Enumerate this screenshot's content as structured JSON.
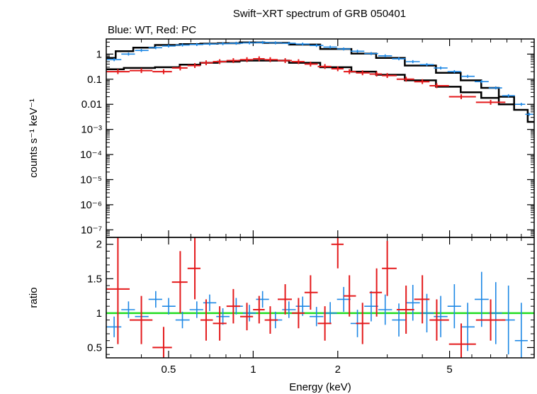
{
  "chart_data": {
    "type": "scatter",
    "title": "Swift−XRT spectrum of GRB 050401",
    "subtitle": "Blue: WT, Red: PC",
    "xlabel": "Energy (keV)",
    "x_scale": "log",
    "xlim": [
      0.3,
      10
    ],
    "x_ticks": [
      {
        "value": 0.5,
        "label": "0.5"
      },
      {
        "value": 1,
        "label": "1"
      },
      {
        "value": 2,
        "label": "2"
      },
      {
        "value": 5,
        "label": "5"
      }
    ],
    "panels": [
      {
        "ylabel": "counts s⁻¹ keV⁻¹",
        "y_scale": "log",
        "ylim": [
          5e-08,
          4
        ],
        "y_ticks": [
          {
            "value": 1,
            "label": "1"
          },
          {
            "value": 0.1,
            "label": "0.1"
          },
          {
            "value": 0.01,
            "label": "0.01"
          },
          {
            "value": 0.001,
            "label": "10⁻³"
          },
          {
            "value": 0.0001,
            "label": "10⁻⁴"
          },
          {
            "value": 1e-05,
            "label": "10⁻⁵"
          },
          {
            "value": 1e-06,
            "label": "10⁻⁶"
          },
          {
            "value": 1e-07,
            "label": "10⁻⁷"
          }
        ],
        "series": [
          {
            "name": "WT",
            "color": "#1e88e5",
            "x": [
              0.32,
              0.36,
              0.4,
              0.45,
              0.5,
              0.56,
              0.63,
              0.7,
              0.78,
              0.87,
              0.97,
              1.08,
              1.2,
              1.34,
              1.5,
              1.68,
              1.88,
              2.1,
              2.35,
              2.63,
              2.95,
              3.3,
              3.7,
              4.15,
              4.65,
              5.2,
              5.8,
              6.5,
              7.3,
              8.1,
              9.0,
              9.6
            ],
            "y": [
              0.6,
              1.0,
              1.4,
              1.8,
              2.1,
              2.3,
              2.4,
              2.5,
              2.6,
              2.7,
              2.8,
              2.9,
              2.8,
              2.7,
              2.5,
              2.2,
              1.9,
              1.6,
              1.3,
              1.05,
              0.85,
              0.65,
              0.5,
              0.38,
              0.28,
              0.2,
              0.13,
              0.08,
              0.045,
              0.022,
              0.01,
              0.004
            ]
          },
          {
            "name": "PC",
            "color": "#e41a1c",
            "x": [
              0.33,
              0.4,
              0.48,
              0.55,
              0.62,
              0.68,
              0.76,
              0.85,
              0.95,
              1.05,
              1.15,
              1.3,
              1.45,
              1.6,
              1.8,
              2.0,
              2.2,
              2.45,
              2.75,
              3.0,
              3.5,
              4.0,
              4.5,
              5.5,
              7.0
            ],
            "y": [
              0.2,
              0.22,
              0.2,
              0.28,
              0.35,
              0.45,
              0.5,
              0.55,
              0.6,
              0.65,
              0.6,
              0.55,
              0.5,
              0.4,
              0.32,
              0.26,
              0.2,
              0.18,
              0.16,
              0.14,
              0.1,
              0.08,
              0.055,
              0.02,
              0.012
            ]
          }
        ],
        "model_lines": [
          {
            "name": "WT model",
            "color": "#000000",
            "x": [
              0.3,
              0.35,
              0.4,
              0.5,
              0.6,
              0.7,
              0.8,
              1.0,
              1.2,
              1.5,
              2.0,
              2.5,
              3.0,
              4.0,
              5.0,
              6.0,
              7.0,
              8.0,
              9.0,
              10.0
            ],
            "y": [
              0.7,
              1.3,
              1.8,
              2.3,
              2.5,
              2.6,
              2.7,
              2.9,
              2.8,
              2.4,
              1.6,
              1.05,
              0.7,
              0.35,
              0.18,
              0.09,
              0.045,
              0.02,
              0.006,
              0.002
            ]
          },
          {
            "name": "PC model",
            "color": "#000000",
            "x": [
              0.3,
              0.4,
              0.5,
              0.6,
              0.7,
              0.8,
              1.0,
              1.2,
              1.5,
              2.0,
              2.5,
              3.0,
              4.0,
              5.0,
              6.0,
              7.0,
              8.0
            ],
            "y": [
              0.25,
              0.28,
              0.3,
              0.38,
              0.45,
              0.5,
              0.55,
              0.55,
              0.45,
              0.3,
              0.2,
              0.15,
              0.09,
              0.05,
              0.03,
              0.018,
              0.01
            ]
          }
        ]
      },
      {
        "ylabel": "ratio",
        "y_scale": "linear",
        "ylim": [
          0.35,
          2.1
        ],
        "y_ticks": [
          {
            "value": 0.5,
            "label": "0.5"
          },
          {
            "value": 1,
            "label": "1"
          },
          {
            "value": 1.5,
            "label": "1.5"
          },
          {
            "value": 2,
            "label": "2"
          }
        ],
        "reference_line": {
          "y": 1,
          "color": "#22dd22"
        },
        "series": [
          {
            "name": "WT",
            "color": "#1e88e5",
            "x": [
              0.32,
              0.36,
              0.4,
              0.45,
              0.5,
              0.56,
              0.63,
              0.7,
              0.78,
              0.87,
              0.97,
              1.08,
              1.2,
              1.34,
              1.5,
              1.68,
              1.88,
              2.1,
              2.35,
              2.63,
              2.95,
              3.3,
              3.7,
              4.15,
              4.65,
              5.2,
              5.8,
              6.5,
              7.3,
              8.1,
              9.0
            ],
            "y": [
              0.8,
              1.05,
              0.95,
              1.2,
              1.1,
              0.9,
              1.05,
              1.15,
              0.95,
              1.1,
              1.0,
              1.2,
              0.9,
              1.05,
              1.1,
              0.95,
              1.0,
              1.2,
              0.85,
              1.1,
              1.05,
              0.9,
              1.15,
              1.0,
              0.95,
              1.1,
              0.8,
              1.2,
              1.0,
              0.9,
              0.6
            ],
            "yerr": [
              0.15,
              0.12,
              0.12,
              0.12,
              0.12,
              0.12,
              0.12,
              0.12,
              0.12,
              0.12,
              0.12,
              0.12,
              0.12,
              0.12,
              0.14,
              0.14,
              0.16,
              0.18,
              0.2,
              0.22,
              0.22,
              0.24,
              0.26,
              0.28,
              0.3,
              0.32,
              0.35,
              0.4,
              0.45,
              0.5,
              0.55
            ]
          },
          {
            "name": "PC",
            "color": "#e41a1c",
            "x": [
              0.33,
              0.4,
              0.48,
              0.55,
              0.62,
              0.68,
              0.76,
              0.85,
              0.95,
              1.05,
              1.15,
              1.3,
              1.45,
              1.6,
              1.8,
              2.0,
              2.2,
              2.45,
              2.75,
              3.0,
              3.5,
              4.0,
              4.5,
              5.5,
              7.0
            ],
            "y": [
              1.35,
              0.9,
              0.5,
              1.45,
              1.65,
              0.9,
              0.85,
              1.1,
              0.95,
              1.05,
              0.9,
              1.2,
              1.0,
              1.3,
              0.85,
              2.0,
              1.25,
              0.85,
              1.3,
              1.65,
              1.05,
              1.2,
              0.9,
              0.55,
              0.9
            ],
            "yerr": [
              0.8,
              0.35,
              0.3,
              0.45,
              0.45,
              0.3,
              0.25,
              0.25,
              0.2,
              0.2,
              0.2,
              0.22,
              0.22,
              0.25,
              0.25,
              0.35,
              0.3,
              0.3,
              0.35,
              0.4,
              0.35,
              0.35,
              0.3,
              0.3,
              0.3
            ]
          }
        ]
      }
    ]
  }
}
